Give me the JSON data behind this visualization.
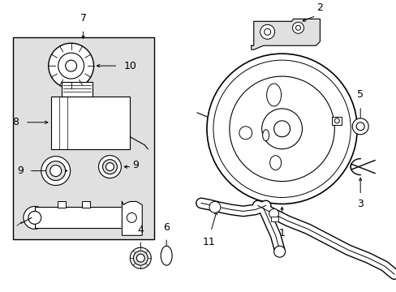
{
  "background_color": "#ffffff",
  "line_color": "#000000",
  "gray_fill": "#e0e0e0",
  "figsize": [
    4.89,
    3.6
  ],
  "dpi": 100
}
